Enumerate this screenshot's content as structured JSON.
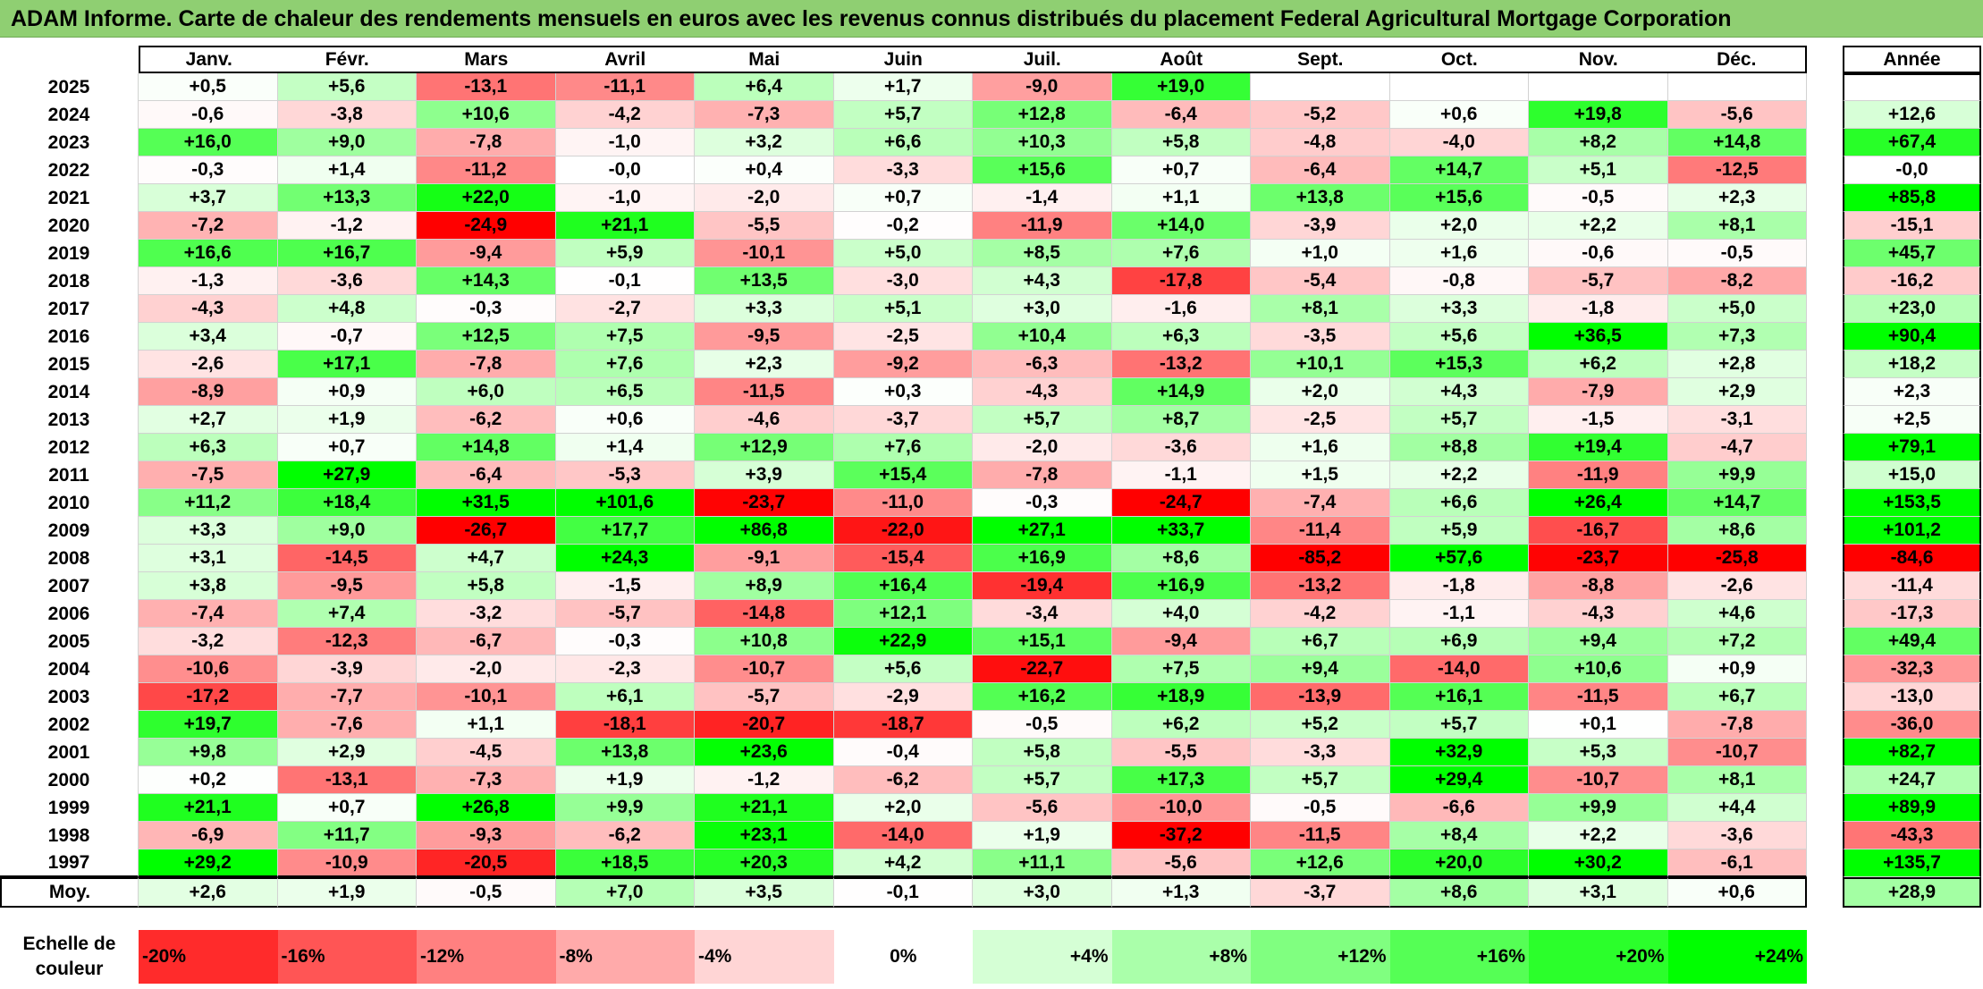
{
  "title": "ADAM Informe. Carte de chaleur des rendements mensuels en euros avec les revenus connus distribués du placement Federal Agricultural Mortgage Corporation",
  "colors": {
    "negative": "#ff0000",
    "neutral": "#ffffff",
    "positive": "#00ff00"
  },
  "chart_data": {
    "type": "heatmap",
    "title": "ADAM Informe. Carte de chaleur des rendements mensuels en euros avec les revenus connus distribués du placement Federal Agricultural Mortgage Corporation",
    "months": [
      "Janv.",
      "Févr.",
      "Mars",
      "Avril",
      "Mai",
      "Juin",
      "Juil.",
      "Août",
      "Sept.",
      "Oct.",
      "Nov.",
      "Déc."
    ],
    "annual_label": "Année",
    "rows": [
      {
        "year": "2025",
        "values": [
          "+0,5",
          "+5,6",
          "-13,1",
          "-11,1",
          "+6,4",
          "+1,7",
          "-9,0",
          "+19,0",
          "",
          "",
          "",
          ""
        ],
        "annual": ""
      },
      {
        "year": "2024",
        "values": [
          "-0,6",
          "-3,8",
          "+10,6",
          "-4,2",
          "-7,3",
          "+5,7",
          "+12,8",
          "-6,4",
          "-5,2",
          "+0,6",
          "+19,8",
          "-5,6"
        ],
        "annual": "+12,6"
      },
      {
        "year": "2023",
        "values": [
          "+16,0",
          "+9,0",
          "-7,8",
          "-1,0",
          "+3,2",
          "+6,6",
          "+10,3",
          "+5,8",
          "-4,8",
          "-4,0",
          "+8,2",
          "+14,8"
        ],
        "annual": "+67,4"
      },
      {
        "year": "2022",
        "values": [
          "-0,3",
          "+1,4",
          "-11,2",
          "-0,0",
          "+0,4",
          "-3,3",
          "+15,6",
          "+0,7",
          "-6,4",
          "+14,7",
          "+5,1",
          "-12,5"
        ],
        "annual": "-0,0"
      },
      {
        "year": "2021",
        "values": [
          "+3,7",
          "+13,3",
          "+22,0",
          "-1,0",
          "-2,0",
          "+0,7",
          "-1,4",
          "+1,1",
          "+13,8",
          "+15,6",
          "-0,5",
          "+2,3"
        ],
        "annual": "+85,8"
      },
      {
        "year": "2020",
        "values": [
          "-7,2",
          "-1,2",
          "-24,9",
          "+21,1",
          "-5,5",
          "-0,2",
          "-11,9",
          "+14,0",
          "-3,9",
          "+2,0",
          "+2,2",
          "+8,1"
        ],
        "annual": "-15,1"
      },
      {
        "year": "2019",
        "values": [
          "+16,6",
          "+16,7",
          "-9,4",
          "+5,9",
          "-10,1",
          "+5,0",
          "+8,5",
          "+7,6",
          "+1,0",
          "+1,6",
          "-0,6",
          "-0,5"
        ],
        "annual": "+45,7"
      },
      {
        "year": "2018",
        "values": [
          "-1,3",
          "-3,6",
          "+14,3",
          "-0,1",
          "+13,5",
          "-3,0",
          "+4,3",
          "-17,8",
          "-5,4",
          "-0,8",
          "-5,7",
          "-8,2"
        ],
        "annual": "-16,2"
      },
      {
        "year": "2017",
        "values": [
          "-4,3",
          "+4,8",
          "-0,3",
          "-2,7",
          "+3,3",
          "+5,1",
          "+3,0",
          "-1,6",
          "+8,1",
          "+3,3",
          "-1,8",
          "+5,0"
        ],
        "annual": "+23,0"
      },
      {
        "year": "2016",
        "values": [
          "+3,4",
          "-0,7",
          "+12,5",
          "+7,5",
          "-9,5",
          "-2,5",
          "+10,4",
          "+6,3",
          "-3,5",
          "+5,6",
          "+36,5",
          "+7,3"
        ],
        "annual": "+90,4"
      },
      {
        "year": "2015",
        "values": [
          "-2,6",
          "+17,1",
          "-7,8",
          "+7,6",
          "+2,3",
          "-9,2",
          "-6,3",
          "-13,2",
          "+10,1",
          "+15,3",
          "+6,2",
          "+2,8"
        ],
        "annual": "+18,2"
      },
      {
        "year": "2014",
        "values": [
          "-8,9",
          "+0,9",
          "+6,0",
          "+6,5",
          "-11,5",
          "+0,3",
          "-4,3",
          "+14,9",
          "+2,0",
          "+4,3",
          "-7,9",
          "+2,9"
        ],
        "annual": "+2,3"
      },
      {
        "year": "2013",
        "values": [
          "+2,7",
          "+1,9",
          "-6,2",
          "+0,6",
          "-4,6",
          "-3,7",
          "+5,7",
          "+8,7",
          "-2,5",
          "+5,7",
          "-1,5",
          "-3,1"
        ],
        "annual": "+2,5"
      },
      {
        "year": "2012",
        "values": [
          "+6,3",
          "+0,7",
          "+14,8",
          "+1,4",
          "+12,9",
          "+7,6",
          "-2,0",
          "-3,6",
          "+1,6",
          "+8,8",
          "+19,4",
          "-4,7"
        ],
        "annual": "+79,1"
      },
      {
        "year": "2011",
        "values": [
          "-7,5",
          "+27,9",
          "-6,4",
          "-5,3",
          "+3,9",
          "+15,4",
          "-7,8",
          "-1,1",
          "+1,5",
          "+2,2",
          "-11,9",
          "+9,9"
        ],
        "annual": "+15,0"
      },
      {
        "year": "2010",
        "values": [
          "+11,2",
          "+18,4",
          "+31,5",
          "+101,6",
          "-23,7",
          "-11,0",
          "-0,3",
          "-24,7",
          "-7,4",
          "+6,6",
          "+26,4",
          "+14,7"
        ],
        "annual": "+153,5"
      },
      {
        "year": "2009",
        "values": [
          "+3,3",
          "+9,0",
          "-26,7",
          "+17,7",
          "+86,8",
          "-22,0",
          "+27,1",
          "+33,7",
          "-11,4",
          "+5,9",
          "-16,7",
          "+8,6"
        ],
        "annual": "+101,2"
      },
      {
        "year": "2008",
        "values": [
          "+3,1",
          "-14,5",
          "+4,7",
          "+24,3",
          "-9,1",
          "-15,4",
          "+16,9",
          "+8,6",
          "-85,2",
          "+57,6",
          "-23,7",
          "-25,8"
        ],
        "annual": "-84,6"
      },
      {
        "year": "2007",
        "values": [
          "+3,8",
          "-9,5",
          "+5,8",
          "-1,5",
          "+8,9",
          "+16,4",
          "-19,4",
          "+16,9",
          "-13,2",
          "-1,8",
          "-8,8",
          "-2,6"
        ],
        "annual": "-11,4"
      },
      {
        "year": "2006",
        "values": [
          "-7,4",
          "+7,4",
          "-3,2",
          "-5,7",
          "-14,8",
          "+12,1",
          "-3,4",
          "+4,0",
          "-4,2",
          "-1,1",
          "-4,3",
          "+4,6"
        ],
        "annual": "-17,3"
      },
      {
        "year": "2005",
        "values": [
          "-3,2",
          "-12,3",
          "-6,7",
          "-0,3",
          "+10,8",
          "+22,9",
          "+15,1",
          "-9,4",
          "+6,7",
          "+6,9",
          "+9,4",
          "+7,2"
        ],
        "annual": "+49,4"
      },
      {
        "year": "2004",
        "values": [
          "-10,6",
          "-3,9",
          "-2,0",
          "-2,3",
          "-10,7",
          "+5,6",
          "-22,7",
          "+7,5",
          "+9,4",
          "-14,0",
          "+10,6",
          "+0,9"
        ],
        "annual": "-32,3"
      },
      {
        "year": "2003",
        "values": [
          "-17,2",
          "-7,7",
          "-10,1",
          "+6,1",
          "-5,7",
          "-2,9",
          "+16,2",
          "+18,9",
          "-13,9",
          "+16,1",
          "-11,5",
          "+6,7"
        ],
        "annual": "-13,0"
      },
      {
        "year": "2002",
        "values": [
          "+19,7",
          "-7,6",
          "+1,1",
          "-18,1",
          "-20,7",
          "-18,7",
          "-0,5",
          "+6,2",
          "+5,2",
          "+5,7",
          "+0,1",
          "-7,8"
        ],
        "annual": "-36,0"
      },
      {
        "year": "2001",
        "values": [
          "+9,8",
          "+2,9",
          "-4,5",
          "+13,8",
          "+23,6",
          "-0,4",
          "+5,8",
          "-5,5",
          "-3,3",
          "+32,9",
          "+5,3",
          "-10,7"
        ],
        "annual": "+82,7"
      },
      {
        "year": "2000",
        "values": [
          "+0,2",
          "-13,1",
          "-7,3",
          "+1,9",
          "-1,2",
          "-6,2",
          "+5,7",
          "+17,3",
          "+5,7",
          "+29,4",
          "-10,7",
          "+8,1"
        ],
        "annual": "+24,7"
      },
      {
        "year": "1999",
        "values": [
          "+21,1",
          "+0,7",
          "+26,8",
          "+9,9",
          "+21,1",
          "+2,0",
          "-5,6",
          "-10,0",
          "-0,5",
          "-6,6",
          "+9,9",
          "+4,4"
        ],
        "annual": "+89,9"
      },
      {
        "year": "1998",
        "values": [
          "-6,9",
          "+11,7",
          "-9,3",
          "-6,2",
          "+23,1",
          "-14,0",
          "+1,9",
          "-37,2",
          "-11,5",
          "+8,4",
          "+2,2",
          "-3,6"
        ],
        "annual": "-43,3"
      },
      {
        "year": "1997",
        "values": [
          "+29,2",
          "-10,9",
          "-20,5",
          "+18,5",
          "+20,3",
          "+4,2",
          "+11,1",
          "-5,6",
          "+12,6",
          "+20,0",
          "+30,2",
          "-6,1"
        ],
        "annual": "+135,7"
      }
    ],
    "average": {
      "label": "Moy.",
      "values": [
        "+2,6",
        "+1,9",
        "-0,5",
        "+7,0",
        "+3,5",
        "-0,1",
        "+3,0",
        "+1,3",
        "-3,7",
        "+8,6",
        "+3,1",
        "+0,6"
      ],
      "annual": "+28,9"
    },
    "scale": {
      "label": "Echelle de couleur",
      "steps": [
        {
          "label": "-20%",
          "value": -20,
          "align": "left"
        },
        {
          "label": "-16%",
          "value": -16,
          "align": "left"
        },
        {
          "label": "-12%",
          "value": -12,
          "align": "left"
        },
        {
          "label": "-8%",
          "value": -8,
          "align": "left"
        },
        {
          "label": "-4%",
          "value": -4,
          "align": "left"
        },
        {
          "label": "0%",
          "value": 0,
          "align": "center"
        },
        {
          "label": "+4%",
          "value": 4,
          "align": "right"
        },
        {
          "label": "+8%",
          "value": 8,
          "align": "right"
        },
        {
          "label": "+12%",
          "value": 12,
          "align": "right"
        },
        {
          "label": "+16%",
          "value": 16,
          "align": "right"
        },
        {
          "label": "+20%",
          "value": 20,
          "align": "right"
        },
        {
          "label": "+24%",
          "value": 24,
          "align": "right"
        }
      ]
    }
  }
}
